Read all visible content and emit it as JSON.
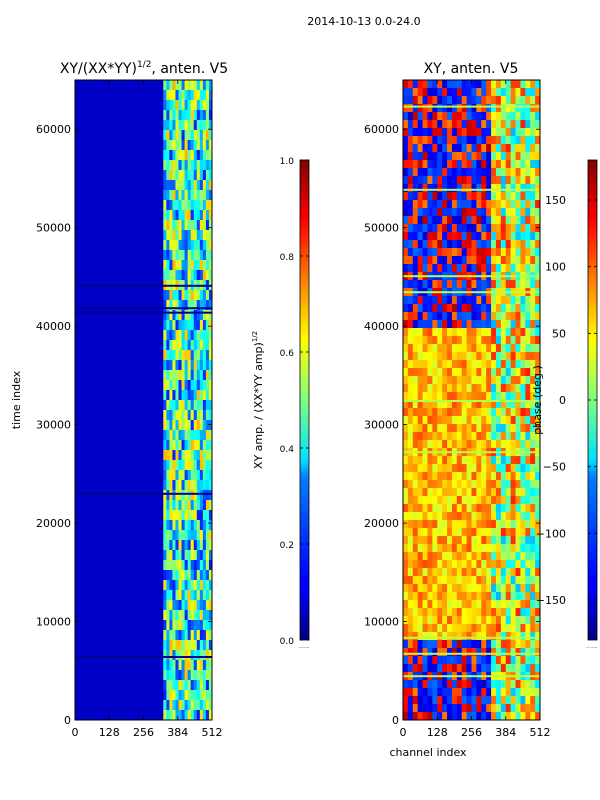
{
  "figure_title": "2014-10-13 0.0-24.0",
  "x_axis_shared_label": "channel index",
  "chart_data": [
    {
      "type": "heatmap",
      "title_base": "XY/(XX*YY)",
      "title_sup": "1/2",
      "title_tail": ", anten. V5",
      "xlabel": "",
      "ylabel": "time index",
      "xlim": [
        0,
        512
      ],
      "ylim": [
        0,
        65000
      ],
      "xticks": [
        0,
        128,
        256,
        384,
        512
      ],
      "yticks": [
        0,
        10000,
        20000,
        30000,
        40000,
        50000,
        60000
      ],
      "colorbar": {
        "label_base": "XY amp. / (XX*YY amp)",
        "label_sup": "1/2",
        "vmin": 0.0,
        "vmax": 1.0,
        "ticks": [
          "0.0",
          "0.2",
          "0.4",
          "0.6",
          "0.8",
          "1.0"
        ],
        "tick_values": [
          0.0,
          0.2,
          0.4,
          0.6,
          0.8,
          1.0
        ],
        "colormap": "jet"
      },
      "colorbar_extra_label": ".......",
      "description_regions": [
        {
          "channels": [
            0,
            330
          ],
          "value": 0.05
        },
        {
          "channels": [
            330,
            512
          ],
          "value": 0.45
        }
      ]
    },
    {
      "type": "heatmap",
      "title_base": "XY, anten. V5",
      "xlabel": "channel index",
      "ylabel": "",
      "xlim": [
        0,
        512
      ],
      "ylim": [
        0,
        65000
      ],
      "xticks": [
        0,
        128,
        256,
        384,
        512
      ],
      "yticks": [
        0,
        10000,
        20000,
        30000,
        40000,
        50000,
        60000
      ],
      "colorbar": {
        "label_base": "phase (deg.)",
        "vmin": -180,
        "vmax": 180,
        "ticks": [
          "150",
          "100",
          "50",
          "0",
          "−50",
          "−100",
          "−150"
        ],
        "tick_values": [
          150,
          100,
          50,
          0,
          -50,
          -100,
          -150
        ],
        "colormap": "jet"
      },
      "colorbar_extra_label": ".......",
      "description_regions": [
        {
          "time": [
            0,
            8000
          ],
          "value": -150
        },
        {
          "time": [
            8000,
            40000
          ],
          "value": 40
        },
        {
          "time": [
            40000,
            65000
          ],
          "value": -150
        }
      ]
    }
  ]
}
